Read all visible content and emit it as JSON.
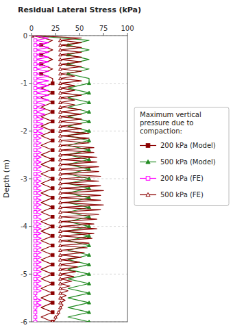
{
  "chart_data": {
    "type": "line",
    "title": "Residual Lateral Stress (kPa)",
    "y_label": "Depth (m)",
    "xlim": [
      0,
      100
    ],
    "ylim": [
      -6,
      0
    ],
    "xticks": [
      0,
      25,
      50,
      75,
      100
    ],
    "yticks": [
      0,
      -1,
      -2,
      -3,
      -4,
      -5,
      -6
    ],
    "grid": "y",
    "legend": "right",
    "legend_title": "Maximum vertical\npressure due to\ncompaction:",
    "series": [
      {
        "name": "200 kPa (Model)",
        "color": "#8B0000",
        "marker": "square",
        "x": [
          1,
          22,
          10,
          22,
          10,
          22,
          10,
          22,
          10,
          22,
          22,
          10,
          22,
          10,
          22,
          10,
          22,
          10,
          22,
          10,
          22,
          10,
          22,
          10,
          22,
          10,
          22,
          10,
          22,
          10,
          22,
          10,
          22,
          10,
          22,
          10,
          22,
          10,
          22,
          10,
          22,
          10,
          22,
          10,
          22,
          10,
          22,
          10,
          22,
          10,
          22,
          10,
          22,
          10,
          22,
          10,
          22,
          10,
          22,
          10,
          22
        ],
        "values": [
          0.0,
          -0.1,
          -0.2,
          -0.3,
          -0.4,
          -0.5,
          -0.6,
          -0.7,
          -0.8,
          -0.9,
          -1.0,
          -1.1,
          -1.2,
          -1.3,
          -1.4,
          -1.5,
          -1.6,
          -1.7,
          -1.8,
          -1.9,
          -2.0,
          -2.1,
          -2.2,
          -2.3,
          -2.4,
          -2.5,
          -2.6,
          -2.7,
          -2.8,
          -2.9,
          -3.0,
          -3.1,
          -3.2,
          -3.3,
          -3.4,
          -3.5,
          -3.6,
          -3.7,
          -3.8,
          -3.9,
          -4.0,
          -4.1,
          -4.2,
          -4.3,
          -4.4,
          -4.5,
          -4.6,
          -4.7,
          -4.8,
          -4.9,
          -5.0,
          -5.1,
          -5.2,
          -5.3,
          -5.4,
          -5.5,
          -5.6,
          -5.7,
          -5.8,
          -5.9,
          -6.0
        ]
      },
      {
        "name": "500 kPa (Model)",
        "color": "#228B22",
        "marker": "triangle",
        "x": [
          1,
          60,
          38,
          60,
          38,
          60,
          38,
          60,
          38,
          60,
          60,
          38,
          60,
          38,
          60,
          38,
          60,
          38,
          60,
          38,
          60,
          38,
          60,
          38,
          60,
          38,
          60,
          38,
          60,
          38,
          60,
          38,
          60,
          38,
          60,
          38,
          60,
          38,
          60,
          38,
          60,
          38,
          60,
          38,
          60,
          38,
          60,
          38,
          60,
          38,
          60,
          38,
          60,
          38,
          60,
          38,
          60,
          38,
          60,
          38,
          60
        ],
        "values": [
          0.0,
          -0.1,
          -0.2,
          -0.3,
          -0.4,
          -0.5,
          -0.6,
          -0.7,
          -0.8,
          -0.9,
          -1.0,
          -1.1,
          -1.2,
          -1.3,
          -1.4,
          -1.5,
          -1.6,
          -1.7,
          -1.8,
          -1.9,
          -2.0,
          -2.1,
          -2.2,
          -2.3,
          -2.4,
          -2.5,
          -2.6,
          -2.7,
          -2.8,
          -2.9,
          -3.0,
          -3.1,
          -3.2,
          -3.3,
          -3.4,
          -3.5,
          -3.6,
          -3.7,
          -3.8,
          -3.9,
          -4.0,
          -4.1,
          -4.2,
          -4.3,
          -4.4,
          -4.5,
          -4.6,
          -4.7,
          -4.8,
          -4.9,
          -5.0,
          -5.1,
          -5.2,
          -5.3,
          -5.4,
          -5.5,
          -5.6,
          -5.7,
          -5.8,
          -5.9,
          -6.0
        ]
      },
      {
        "name": "200 kPa (FE)",
        "color": "#FF00FF",
        "marker": "open-square",
        "x": [
          0,
          18,
          4,
          18,
          4,
          18,
          4,
          18,
          4,
          18,
          4,
          18,
          4,
          18,
          4,
          18,
          4,
          18,
          4,
          18,
          4,
          18,
          4,
          18,
          4,
          18,
          4,
          18,
          4,
          14,
          4,
          14,
          4,
          14,
          4,
          12,
          4,
          12,
          4,
          12,
          4,
          12,
          4,
          10,
          4,
          10,
          4,
          10,
          4,
          10,
          4,
          10,
          4,
          10,
          4,
          10,
          4,
          10,
          4,
          10,
          4,
          10,
          4,
          10,
          4,
          10,
          4,
          10,
          4,
          10,
          4,
          10,
          4,
          10,
          4,
          10,
          4,
          10,
          4,
          10,
          4,
          10,
          4,
          10,
          4,
          10,
          4,
          10,
          4,
          10,
          4,
          10,
          4,
          10,
          4,
          10,
          4,
          10,
          4,
          10,
          4,
          10,
          4,
          10,
          4,
          10,
          4,
          10,
          4,
          4,
          4,
          10,
          4,
          10,
          4,
          4,
          4,
          4,
          4,
          4,
          4
        ],
        "values": [
          0.0,
          -0.05,
          -0.1,
          -0.15,
          -0.2,
          -0.25,
          -0.3,
          -0.35,
          -0.4,
          -0.45,
          -0.5,
          -0.55,
          -0.6,
          -0.65,
          -0.7,
          -0.75,
          -0.8,
          -0.85,
          -0.9,
          -0.95,
          -1.0,
          -1.05,
          -1.1,
          -1.15,
          -1.2,
          -1.25,
          -1.3,
          -1.35,
          -1.4,
          -1.45,
          -1.5,
          -1.55,
          -1.6,
          -1.65,
          -1.7,
          -1.75,
          -1.8,
          -1.85,
          -1.9,
          -1.95,
          -2.0,
          -2.05,
          -2.1,
          -2.15,
          -2.2,
          -2.25,
          -2.3,
          -2.35,
          -2.4,
          -2.45,
          -2.5,
          -2.55,
          -2.6,
          -2.65,
          -2.7,
          -2.75,
          -2.8,
          -2.85,
          -2.9,
          -2.95,
          -3.0,
          -3.05,
          -3.1,
          -3.15,
          -3.2,
          -3.25,
          -3.3,
          -3.35,
          -3.4,
          -3.45,
          -3.5,
          -3.55,
          -3.6,
          -3.65,
          -3.7,
          -3.75,
          -3.8,
          -3.85,
          -3.9,
          -3.95,
          -4.0,
          -4.05,
          -4.1,
          -4.15,
          -4.2,
          -4.25,
          -4.3,
          -4.35,
          -4.4,
          -4.45,
          -4.5,
          -4.55,
          -4.6,
          -4.65,
          -4.7,
          -4.75,
          -4.8,
          -4.85,
          -4.9,
          -4.95,
          -5.0,
          -5.05,
          -5.1,
          -5.15,
          -5.2,
          -5.25,
          -5.3,
          -5.35,
          -5.4,
          -5.45,
          -5.5,
          -5.55,
          -5.6,
          -5.65,
          -5.7,
          -5.75,
          -5.8,
          -5.85,
          -5.9,
          -5.95,
          -6.0
        ]
      },
      {
        "name": "500 kPa (FE)",
        "color": "#8B0000",
        "marker": "open-triangle",
        "x": [
          0,
          52,
          30,
          52,
          30,
          52,
          30,
          52,
          30,
          52,
          30,
          52,
          30,
          52,
          30,
          52,
          30,
          45,
          30,
          52,
          30,
          45,
          30,
          45,
          30,
          52,
          30,
          45,
          30,
          45,
          30,
          52,
          30,
          52,
          30,
          52,
          30,
          52,
          30,
          52,
          30,
          60,
          30,
          60,
          30,
          60,
          30,
          65,
          30,
          65,
          30,
          68,
          30,
          68,
          30,
          70,
          30,
          70,
          30,
          72,
          30,
          70,
          30,
          72,
          30,
          75,
          30,
          72,
          30,
          72,
          30,
          75,
          30,
          72,
          30,
          70,
          30,
          68,
          30,
          65,
          30,
          68,
          30,
          65,
          30,
          63,
          30,
          60,
          30,
          58,
          30,
          55,
          30,
          52,
          30,
          50,
          30,
          48,
          30,
          46,
          30,
          44,
          30,
          42,
          30,
          40,
          30,
          38,
          30,
          36,
          30,
          35,
          30,
          33,
          30,
          30,
          28,
          28,
          25,
          25,
          22
        ],
        "values": [
          0.0,
          -0.05,
          -0.1,
          -0.15,
          -0.2,
          -0.25,
          -0.3,
          -0.35,
          -0.4,
          -0.45,
          -0.5,
          -0.55,
          -0.6,
          -0.65,
          -0.7,
          -0.75,
          -0.8,
          -0.85,
          -0.9,
          -0.95,
          -1.0,
          -1.05,
          -1.1,
          -1.15,
          -1.2,
          -1.25,
          -1.3,
          -1.35,
          -1.4,
          -1.45,
          -1.5,
          -1.55,
          -1.6,
          -1.65,
          -1.7,
          -1.75,
          -1.8,
          -1.85,
          -1.9,
          -1.95,
          -2.0,
          -2.05,
          -2.1,
          -2.15,
          -2.2,
          -2.25,
          -2.3,
          -2.35,
          -2.4,
          -2.45,
          -2.5,
          -2.55,
          -2.6,
          -2.65,
          -2.7,
          -2.75,
          -2.8,
          -2.85,
          -2.9,
          -2.95,
          -3.0,
          -3.05,
          -3.1,
          -3.15,
          -3.2,
          -3.25,
          -3.3,
          -3.35,
          -3.4,
          -3.45,
          -3.5,
          -3.55,
          -3.6,
          -3.65,
          -3.7,
          -3.75,
          -3.8,
          -3.85,
          -3.9,
          -3.95,
          -4.0,
          -4.05,
          -4.1,
          -4.15,
          -4.2,
          -4.25,
          -4.3,
          -4.35,
          -4.4,
          -4.45,
          -4.5,
          -4.55,
          -4.6,
          -4.65,
          -4.7,
          -4.75,
          -4.8,
          -4.85,
          -4.9,
          -4.95,
          -5.0,
          -5.05,
          -5.1,
          -5.15,
          -5.2,
          -5.25,
          -5.3,
          -5.35,
          -5.4,
          -5.45,
          -5.5,
          -5.55,
          -5.6,
          -5.65,
          -5.7,
          -5.75,
          -5.8,
          -5.85,
          -5.9,
          -5.95,
          -6.0
        ]
      }
    ]
  }
}
